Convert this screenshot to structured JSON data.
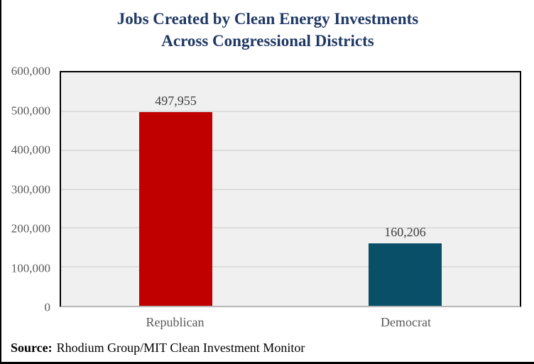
{
  "title": {
    "line1": "Jobs Created by Clean Energy Investments",
    "line2": "Across Congressional Districts"
  },
  "source": {
    "label": "Source:",
    "text": "Rhodium Group/MIT Clean Investment Monitor"
  },
  "colors": {
    "title_text": "#1f3864",
    "republican_bar": "#c00000",
    "democrat_bar": "#0a4f68",
    "plot_background": "#f0f0f0",
    "gridline": "#dcdcdc",
    "axis_text": "#595959",
    "value_text": "#3f3f3f"
  },
  "chart_data": {
    "type": "bar",
    "title": "Jobs Created by Clean Energy Investments Across Congressional Districts",
    "categories": [
      "Republican",
      "Democrat"
    ],
    "values": [
      497955,
      160206
    ],
    "value_labels": [
      "497,955",
      "160,206"
    ],
    "bar_colors": [
      "#c00000",
      "#0a4f68"
    ],
    "xlabel": "",
    "ylabel": "",
    "ylim": [
      0,
      600000
    ],
    "yticks": [
      0,
      100000,
      200000,
      300000,
      400000,
      500000,
      600000
    ],
    "ytick_labels": [
      "0",
      "100,000",
      "200,000",
      "300,000",
      "400,000",
      "500,000",
      "600,000"
    ],
    "grid": true,
    "legend_position": "none",
    "annotation": "Source: Rhodium Group/MIT Clean Investment Monitor"
  }
}
